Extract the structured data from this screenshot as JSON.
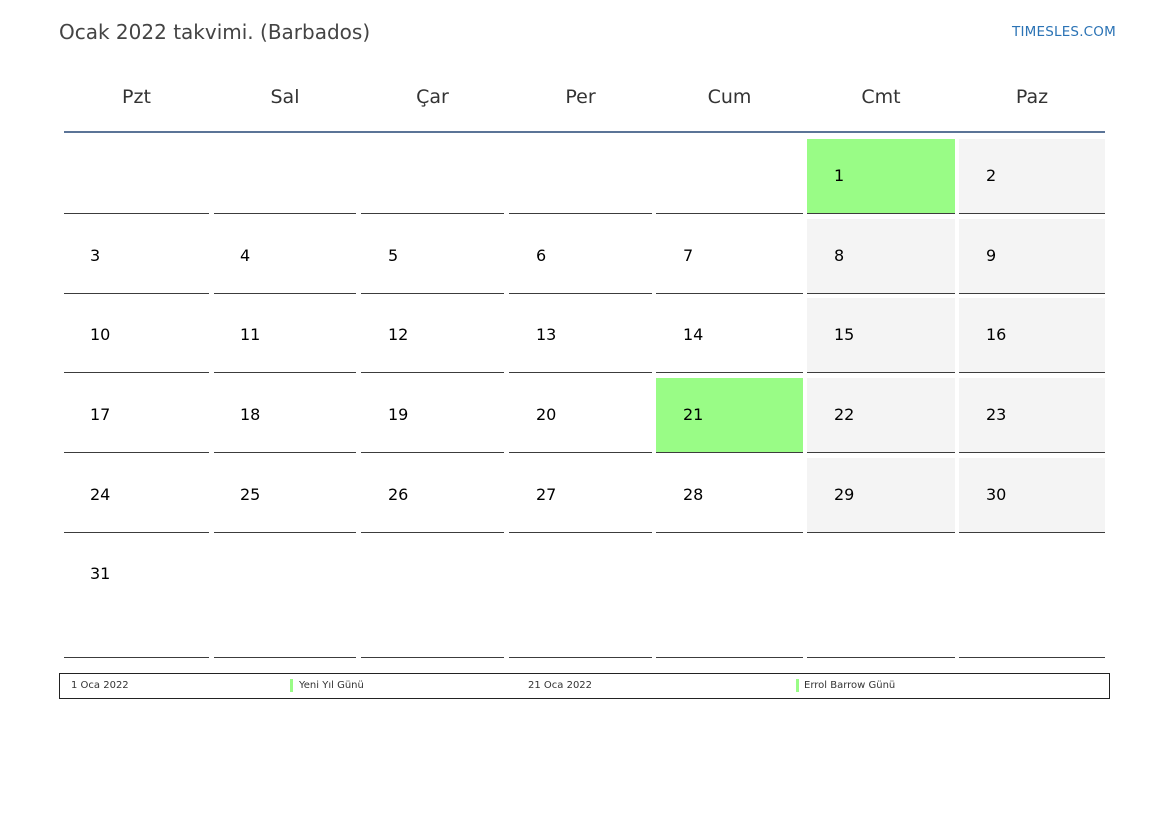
{
  "header": {
    "title": "Ocak 2022 takvimi. (Barbados)",
    "site": "TIMESLES.COM"
  },
  "weekdays": [
    "Pzt",
    "Sal",
    "Çar",
    "Per",
    "Cum",
    "Cmt",
    "Paz"
  ],
  "weeks": [
    [
      "",
      "",
      "",
      "",
      "",
      "1",
      "2"
    ],
    [
      "3",
      "4",
      "5",
      "6",
      "7",
      "8",
      "9"
    ],
    [
      "10",
      "11",
      "12",
      "13",
      "14",
      "15",
      "16"
    ],
    [
      "17",
      "18",
      "19",
      "20",
      "21",
      "22",
      "23"
    ],
    [
      "24",
      "25",
      "26",
      "27",
      "28",
      "29",
      "30"
    ],
    [
      "31",
      "",
      "",
      "",
      "",
      "",
      ""
    ]
  ],
  "holiday_days": [
    "1",
    "21"
  ],
  "colors": {
    "holiday": "#99fc86",
    "weekend": "#f4f4f4",
    "accent_rule": "#5b7497",
    "link": "#2b73b5"
  },
  "legend": [
    {
      "date": "1 Oca 2022",
      "name": "Yeni Yıl Günü"
    },
    {
      "date": "21 Oca 2022",
      "name": "Errol Barrow Günü"
    }
  ]
}
